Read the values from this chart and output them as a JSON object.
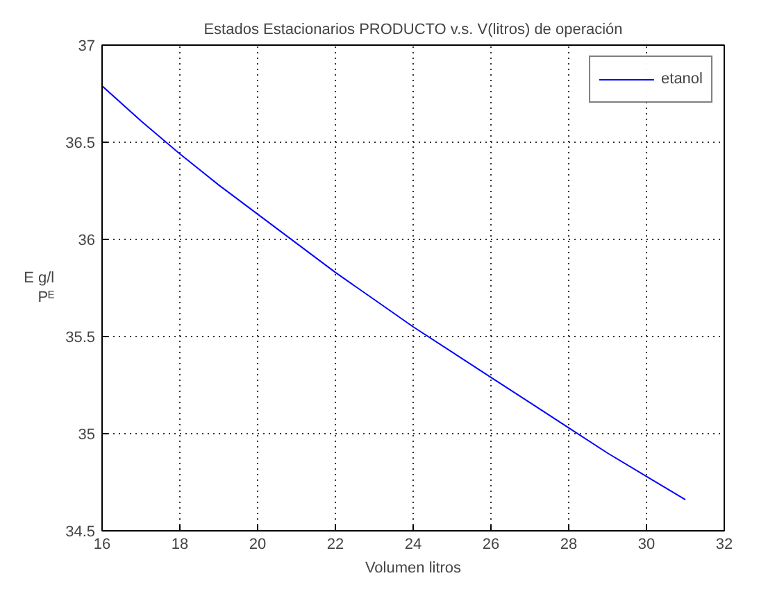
{
  "chart_data": {
    "type": "line",
    "title": "Estados Estacionarios PRODUCTO v.s. V(litros) de operación",
    "xlabel": "Volumen litros",
    "ylabel": "E g/l\nPᴱ",
    "x": [
      16,
      17,
      18,
      19,
      20,
      21,
      22,
      23,
      24,
      25,
      26,
      27,
      28,
      29,
      30,
      31
    ],
    "series": [
      {
        "name": "etanol",
        "color": "#0000ff",
        "values": [
          36.79,
          36.61,
          36.44,
          36.28,
          36.13,
          35.98,
          35.83,
          35.69,
          35.55,
          35.42,
          35.29,
          35.16,
          35.03,
          34.9,
          34.78,
          34.66
        ]
      }
    ],
    "xlim": [
      16,
      32
    ],
    "ylim": [
      34.5,
      37
    ],
    "xticks": [
      16,
      18,
      20,
      22,
      24,
      26,
      28,
      30,
      32
    ],
    "yticks": [
      34.5,
      35,
      35.5,
      36,
      36.5,
      37
    ],
    "grid": true,
    "legend": "top right",
    "line_style": "solid",
    "marker": "none"
  }
}
